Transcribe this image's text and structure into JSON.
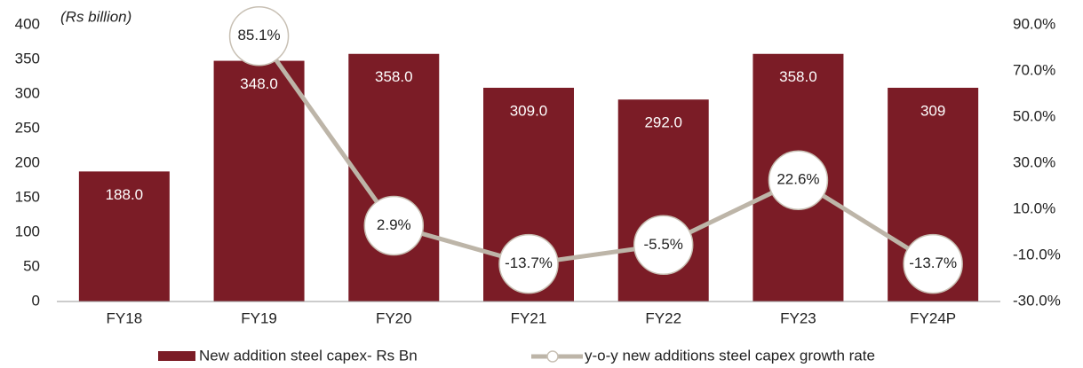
{
  "chart_data": {
    "type": "bar",
    "unit_label": "(Rs billion)",
    "categories": [
      "FY18",
      "FY19",
      "FY20",
      "FY21",
      "FY22",
      "FY23",
      "FY24P"
    ],
    "series": [
      {
        "name": "New addition steel capex- Rs Bn",
        "type": "bar",
        "color": "#7b1c26",
        "values": [
          188.0,
          348.0,
          358.0,
          309.0,
          292.0,
          358.0,
          309
        ],
        "value_labels": [
          "188.0",
          "348.0",
          "358.0",
          "309.0",
          "292.0",
          "358.0",
          "309"
        ]
      },
      {
        "name": "y-o-y new additions steel capex growth rate",
        "type": "line",
        "axis": "y2",
        "color": "#bdb5a8",
        "values": [
          null,
          85.1,
          2.9,
          -13.7,
          -5.5,
          22.6,
          -13.7
        ],
        "value_labels": [
          null,
          "85.1%",
          "2.9%",
          "-13.7%",
          "-5.5%",
          "22.6%",
          "-13.7%"
        ]
      }
    ],
    "ylim": [
      0,
      400
    ],
    "yticks": [
      0,
      50,
      100,
      150,
      200,
      250,
      300,
      350,
      400
    ],
    "y2lim": [
      -30,
      90
    ],
    "y2ticks": [
      {
        "value": -30,
        "label": "-30.0%"
      },
      {
        "value": -10,
        "label": "-10.0%"
      },
      {
        "value": 10,
        "label": "10.0%"
      },
      {
        "value": 30,
        "label": "30.0%"
      },
      {
        "value": 50,
        "label": "50.0%"
      },
      {
        "value": 70,
        "label": "70.0%"
      },
      {
        "value": 90,
        "label": "90.0%"
      }
    ],
    "legend": "bottom"
  }
}
